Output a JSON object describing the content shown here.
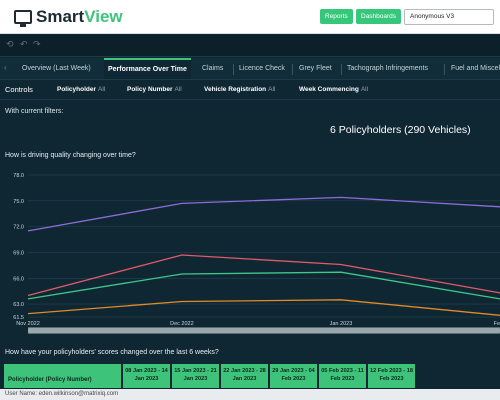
{
  "app": {
    "logo_smart": "Smart",
    "logo_view": "View",
    "reports_button": "Reports",
    "dashboards_button": "Dashboards",
    "account_select": "Anonymous V3"
  },
  "tabs": [
    {
      "label": "Overview (Last Week)",
      "active": false
    },
    {
      "label": "Performance Over Time",
      "active": true
    },
    {
      "label": "Claims",
      "active": false
    },
    {
      "label": "Licence Check",
      "active": false
    },
    {
      "label": "Grey Fleet",
      "active": false
    },
    {
      "label": "Tachograph Infringements",
      "active": false
    },
    {
      "label": "Fuel and Miscell",
      "active": false
    }
  ],
  "controls": {
    "title": "Controls",
    "filters": [
      {
        "label": "Policyholder",
        "value": "All"
      },
      {
        "label": "Policy Number",
        "value": "All"
      },
      {
        "label": "Vehicle Registration",
        "value": "All"
      },
      {
        "label": "Week Commencing",
        "value": "All"
      }
    ]
  },
  "summary": {
    "filters_label": "With current filters:",
    "policy_count": "6 Policyholders (290 Vehicles)"
  },
  "chart_heading": "How is driving quality changing over time?",
  "chart_data": {
    "type": "line",
    "x_ticks": [
      "Nov 2022",
      "Dec 2022",
      "Jan 2023",
      "Fe"
    ],
    "y_ticks": [
      61.5,
      63.0,
      66.0,
      69.0,
      72.0,
      75.0,
      78.0
    ],
    "ylim": [
      61.5,
      78.0
    ],
    "x_dates": [
      "2022-11-01",
      "2022-12-01",
      "2023-01-01",
      "2023-02-01"
    ],
    "series": [
      {
        "color": "#8e6bd8",
        "x": [
          "2022-11-01",
          "2022-12-01",
          "2023-01-01",
          "2023-02-01"
        ],
        "values": [
          71.5,
          74.7,
          75.4,
          74.3
        ]
      },
      {
        "color": "#e05a6a",
        "x": [
          "2022-11-01",
          "2022-12-01",
          "2023-01-01",
          "2023-02-01"
        ],
        "values": [
          64.0,
          68.7,
          67.6,
          64.3
        ]
      },
      {
        "color": "#3ec98a",
        "x": [
          "2022-11-01",
          "2022-12-01",
          "2023-01-01",
          "2023-02-01"
        ],
        "values": [
          63.6,
          66.5,
          66.7,
          63.6
        ]
      },
      {
        "color": "#e08a2a",
        "x": [
          "2022-11-01",
          "2022-12-01",
          "2023-01-01",
          "2023-02-01"
        ],
        "values": [
          61.9,
          63.3,
          63.5,
          61.7
        ]
      }
    ]
  },
  "table_heading": "How have your policyholders' scores changed over the last 6 weeks?",
  "table": {
    "first_header": "Policyholder (Policy Number)",
    "week_headers": [
      "08 Jan 2023 - 14 Jan 2023",
      "15 Jan 2023 - 21 Jan 2023",
      "22 Jan 2023 - 28 Jan 2023",
      "29 Jan 2023 - 04 Feb 2023",
      "05 Feb 2023 - 11 Feb 2023",
      "12 Feb 2023 - 18 Feb 2023"
    ]
  },
  "footer": {
    "user": "User Name: eden.wilkinson@matrixiq.com"
  }
}
